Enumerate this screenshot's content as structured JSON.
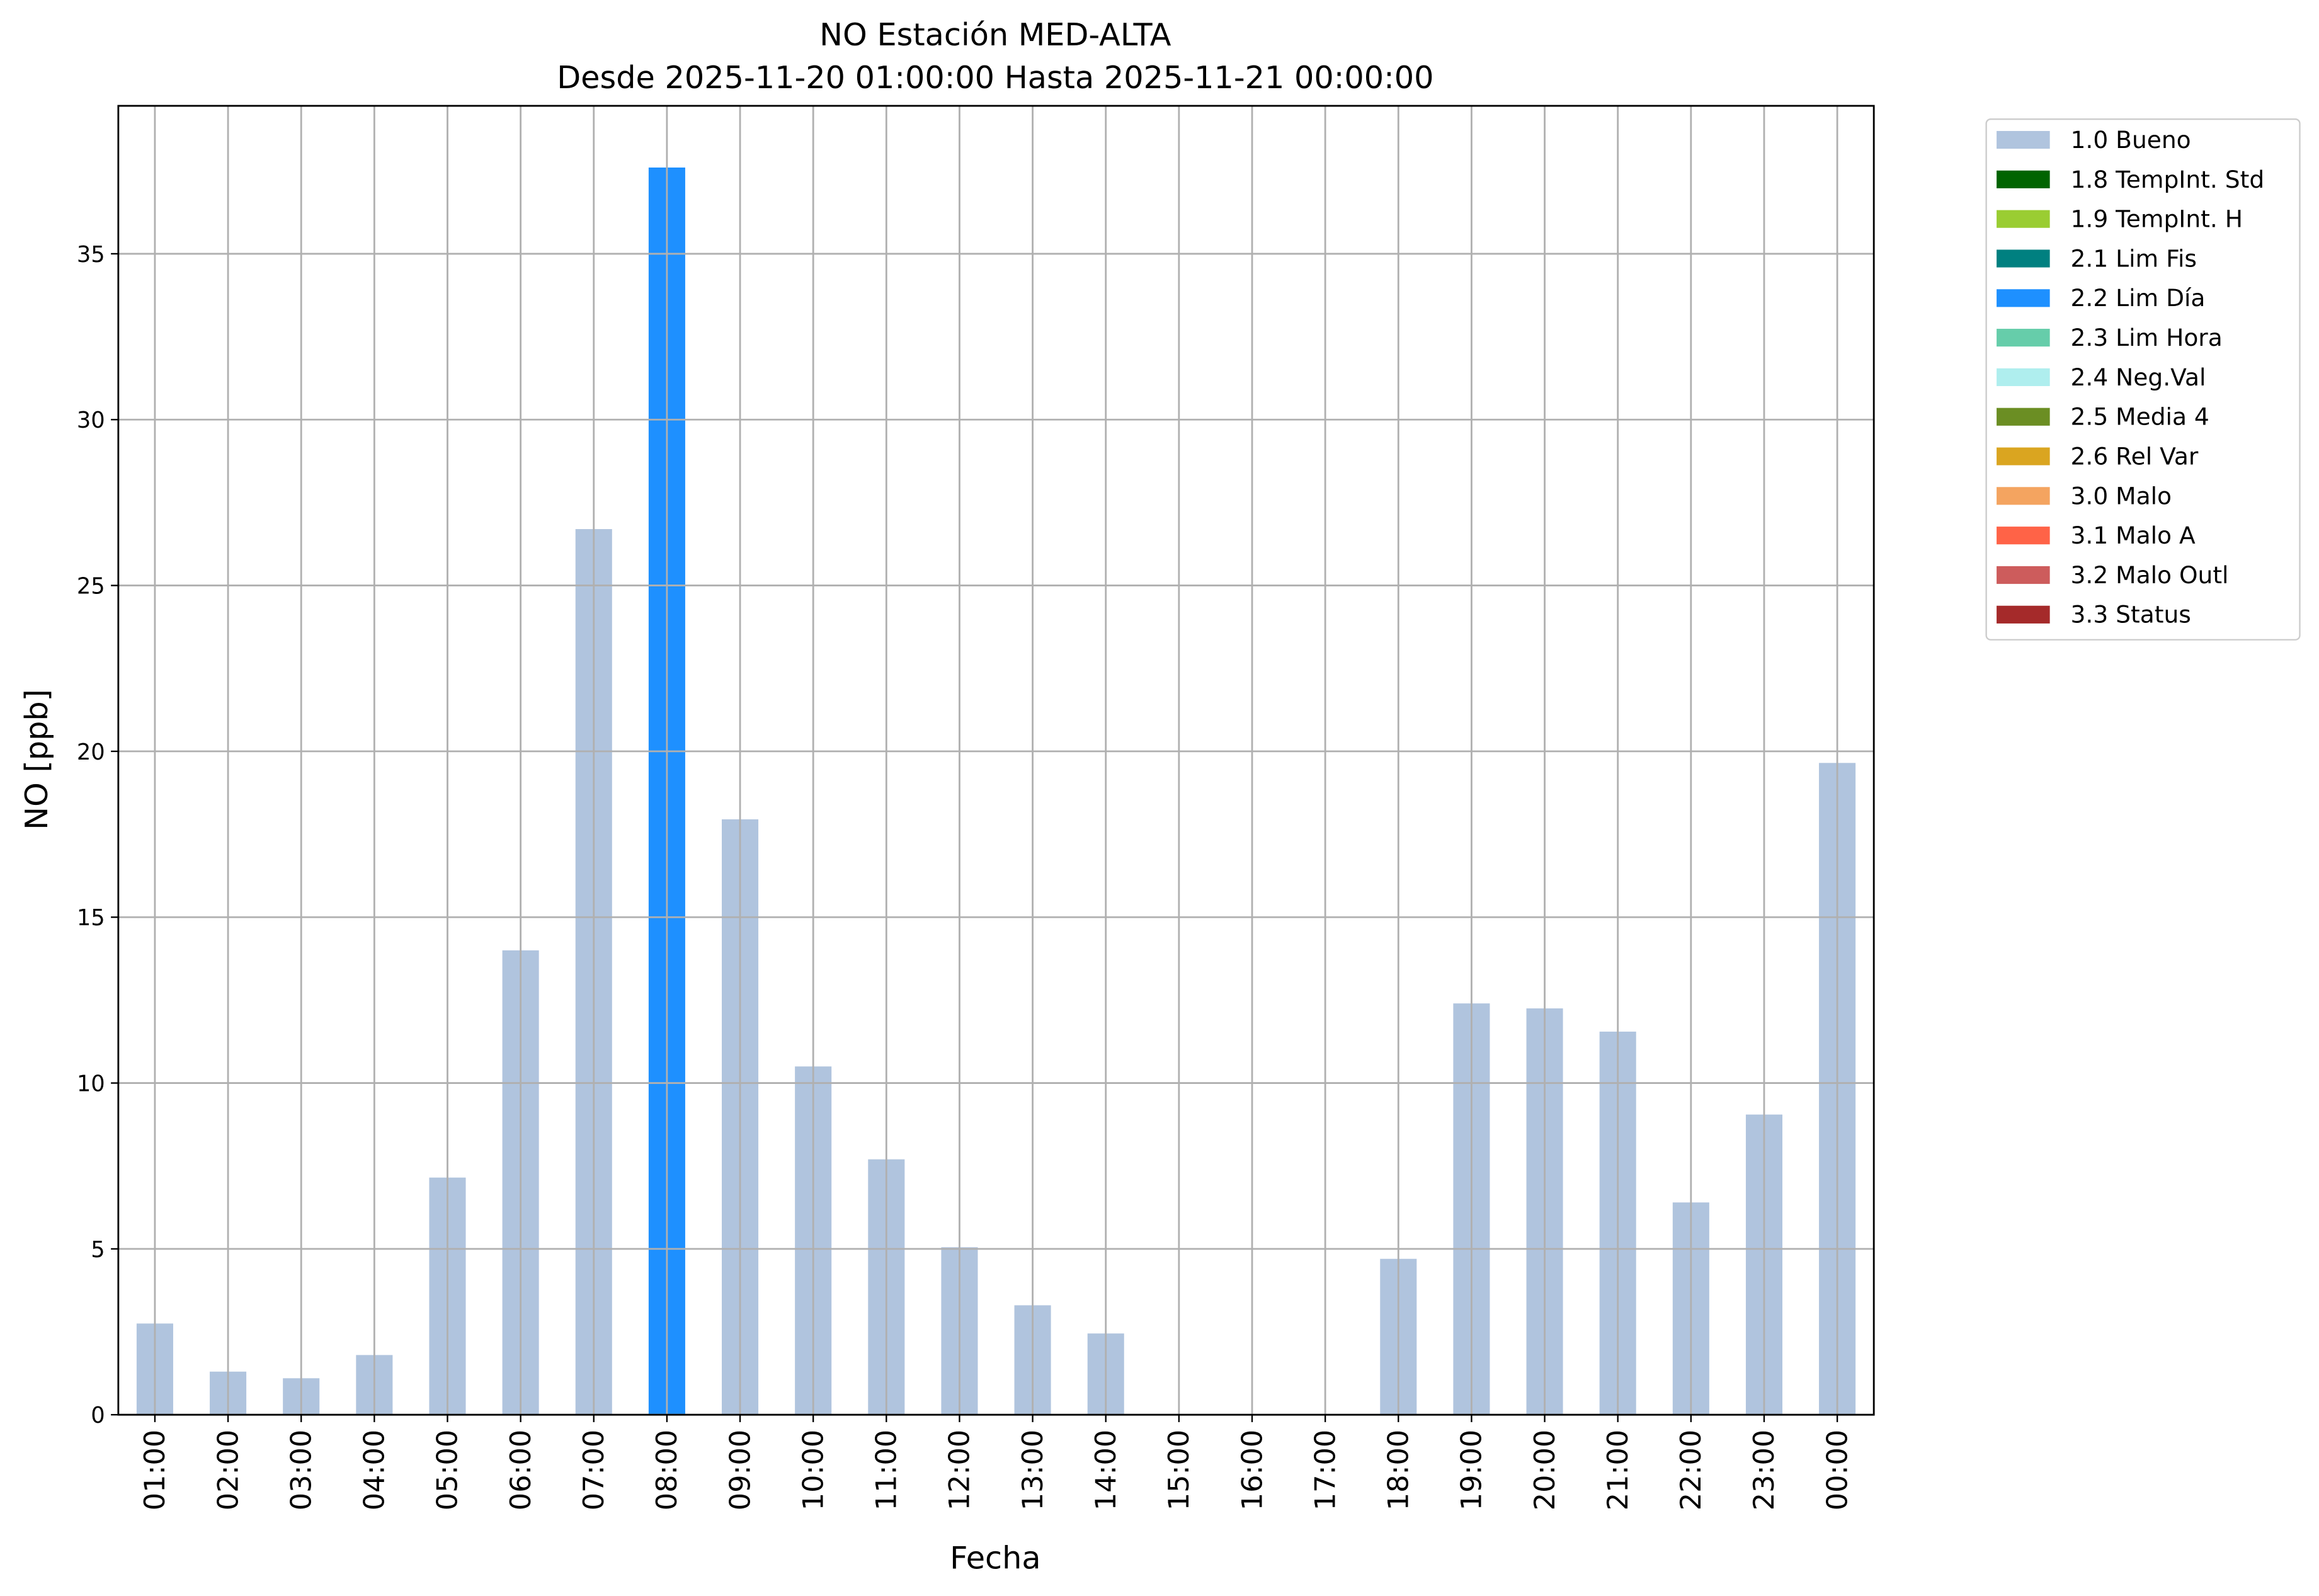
{
  "chart_data": {
    "type": "bar",
    "stacked": true,
    "title": "NO Estación MED-ALTA",
    "subtitle": "Desde 2025-11-20 01:00:00 Hasta 2025-11-21 00:00:00",
    "x_label": "Fecha",
    "y_label": "NO [ppb]",
    "categories": [
      "01:00",
      "02:00",
      "03:00",
      "04:00",
      "05:00",
      "06:00",
      "07:00",
      "08:00",
      "09:00",
      "10:00",
      "11:00",
      "12:00",
      "13:00",
      "14:00",
      "15:00",
      "16:00",
      "17:00",
      "18:00",
      "19:00",
      "20:00",
      "21:00",
      "22:00",
      "23:00",
      "00:00"
    ],
    "series": [
      {
        "name": "1.0 Bueno",
        "color": "#b0c4de",
        "values": [
          2.75,
          1.3,
          1.1,
          1.8,
          7.15,
          14.0,
          26.7,
          null,
          17.95,
          10.5,
          7.7,
          5.05,
          3.3,
          2.45,
          null,
          null,
          null,
          4.7,
          12.4,
          12.25,
          11.55,
          6.4,
          9.05,
          19.65
        ]
      },
      {
        "name": "1.8 TempInt. Std",
        "color": "#006400",
        "values": [
          null,
          null,
          null,
          null,
          null,
          null,
          null,
          null,
          null,
          null,
          null,
          null,
          null,
          null,
          null,
          null,
          null,
          null,
          null,
          null,
          null,
          null,
          null,
          null
        ]
      },
      {
        "name": "1.9 TempInt. H",
        "color": "#9acd32",
        "values": [
          null,
          null,
          null,
          null,
          null,
          null,
          null,
          null,
          null,
          null,
          null,
          null,
          null,
          null,
          null,
          null,
          null,
          null,
          null,
          null,
          null,
          null,
          null,
          null
        ]
      },
      {
        "name": "2.1 Lim Fis",
        "color": "#008080",
        "values": [
          null,
          null,
          null,
          null,
          null,
          null,
          null,
          null,
          null,
          null,
          null,
          null,
          null,
          null,
          null,
          null,
          null,
          null,
          null,
          null,
          null,
          null,
          null,
          null
        ]
      },
      {
        "name": "2.2 Lim Día",
        "color": "#1e90ff",
        "values": [
          null,
          null,
          null,
          null,
          null,
          null,
          null,
          37.6,
          null,
          null,
          null,
          null,
          null,
          null,
          null,
          null,
          null,
          null,
          null,
          null,
          null,
          null,
          null,
          null
        ]
      },
      {
        "name": "2.3 Lim Hora",
        "color": "#66cdaa",
        "values": [
          null,
          null,
          null,
          null,
          null,
          null,
          null,
          null,
          null,
          null,
          null,
          null,
          null,
          null,
          null,
          null,
          null,
          null,
          null,
          null,
          null,
          null,
          null,
          null
        ]
      },
      {
        "name": "2.4 Neg.Val",
        "color": "#afeeee",
        "values": [
          null,
          null,
          null,
          null,
          null,
          null,
          null,
          null,
          null,
          null,
          null,
          null,
          null,
          null,
          null,
          null,
          null,
          null,
          null,
          null,
          null,
          null,
          null,
          null
        ]
      },
      {
        "name": "2.5 Media 4",
        "color": "#6b8e23",
        "values": [
          null,
          null,
          null,
          null,
          null,
          null,
          null,
          null,
          null,
          null,
          null,
          null,
          null,
          null,
          null,
          null,
          null,
          null,
          null,
          null,
          null,
          null,
          null,
          null
        ]
      },
      {
        "name": "2.6 Rel Var",
        "color": "#daa520",
        "values": [
          null,
          null,
          null,
          null,
          null,
          null,
          null,
          null,
          null,
          null,
          null,
          null,
          null,
          null,
          null,
          null,
          null,
          null,
          null,
          null,
          null,
          null,
          null,
          null
        ]
      },
      {
        "name": "3.0 Malo",
        "color": "#f4a460",
        "values": [
          null,
          null,
          null,
          null,
          null,
          null,
          null,
          null,
          null,
          null,
          null,
          null,
          null,
          null,
          null,
          null,
          null,
          null,
          null,
          null,
          null,
          null,
          null,
          null
        ]
      },
      {
        "name": "3.1 Malo A",
        "color": "#ff6347",
        "values": [
          null,
          null,
          null,
          null,
          null,
          null,
          null,
          null,
          null,
          null,
          null,
          null,
          null,
          null,
          null,
          null,
          null,
          null,
          null,
          null,
          null,
          null,
          null,
          null
        ]
      },
      {
        "name": "3.2 Malo Outl",
        "color": "#cd5c5c",
        "values": [
          null,
          null,
          null,
          null,
          null,
          null,
          null,
          null,
          null,
          null,
          null,
          null,
          null,
          null,
          null,
          null,
          null,
          null,
          null,
          null,
          null,
          null,
          null,
          null
        ]
      },
      {
        "name": "3.3 Status",
        "color": "#a52a2a",
        "values": [
          null,
          null,
          null,
          null,
          null,
          null,
          null,
          null,
          null,
          null,
          null,
          null,
          null,
          null,
          null,
          null,
          null,
          null,
          null,
          null,
          null,
          null,
          null,
          null
        ]
      }
    ],
    "ylim": [
      0,
      39.46
    ],
    "yticks": [
      0,
      5,
      10,
      15,
      20,
      25,
      30,
      35
    ],
    "grid": true,
    "legend": "outside upper right"
  }
}
